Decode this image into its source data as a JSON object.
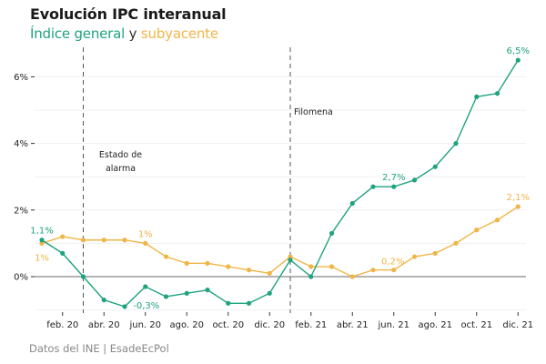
{
  "chart_data": {
    "type": "line",
    "title": "Evolución IPC interanual",
    "subtitle": {
      "part1": "Índice general",
      "connector": " y ",
      "part2": "subyacente"
    },
    "source": "Datos del INE | EsadeEcPol",
    "xlabel": "",
    "ylabel": "",
    "ylim": [
      -1.3,
      6.8
    ],
    "grid": true,
    "x": [
      "ene. 20",
      "feb. 20",
      "mar. 20",
      "abr. 20",
      "may. 20",
      "jun. 20",
      "jul. 20",
      "ago. 20",
      "sep. 20",
      "oct. 20",
      "nov. 20",
      "dic. 20",
      "ene. 21",
      "feb. 21",
      "mar. 21",
      "abr. 21",
      "may. 21",
      "jun. 21",
      "jul. 21",
      "ago. 21",
      "sep. 21",
      "oct. 21",
      "nov. 21",
      "dic. 21"
    ],
    "x_ticks": [
      {
        "index": 1,
        "label": "feb. 20"
      },
      {
        "index": 3,
        "label": "abr. 20"
      },
      {
        "index": 5,
        "label": "jun. 20"
      },
      {
        "index": 7,
        "label": "ago. 20"
      },
      {
        "index": 9,
        "label": "oct. 20"
      },
      {
        "index": 11,
        "label": "dic. 20"
      },
      {
        "index": 13,
        "label": "feb. 21"
      },
      {
        "index": 15,
        "label": "abr. 21"
      },
      {
        "index": 17,
        "label": "jun. 21"
      },
      {
        "index": 19,
        "label": "ago. 21"
      },
      {
        "index": 21,
        "label": "oct. 21"
      },
      {
        "index": 23,
        "label": "dic. 21"
      }
    ],
    "y_ticks": [
      {
        "value": 0,
        "label": "0%"
      },
      {
        "value": 2,
        "label": "2%"
      },
      {
        "value": 4,
        "label": "4%"
      },
      {
        "value": 6,
        "label": "6%"
      }
    ],
    "series": [
      {
        "name": "Índice general",
        "color": "#1fa37f",
        "values": [
          1.1,
          0.7,
          0.0,
          -0.7,
          -0.9,
          -0.3,
          -0.6,
          -0.5,
          -0.4,
          -0.8,
          -0.8,
          -0.5,
          0.5,
          0.0,
          1.3,
          2.2,
          2.7,
          2.7,
          2.9,
          3.3,
          4.0,
          5.4,
          5.5,
          6.5
        ],
        "labels": [
          {
            "index": 0,
            "text": "1,1%",
            "position": "above"
          },
          {
            "index": 5,
            "text": "-0,3%",
            "position": "below"
          },
          {
            "index": 17,
            "text": "2,7%",
            "position": "above"
          },
          {
            "index": 23,
            "text": "6,5%",
            "position": "above"
          }
        ]
      },
      {
        "name": "subyacente",
        "color": "#f0b547",
        "values": [
          1.0,
          1.2,
          1.1,
          1.1,
          1.1,
          1.0,
          0.6,
          0.4,
          0.4,
          0.3,
          0.2,
          0.1,
          0.6,
          0.3,
          0.3,
          0.0,
          0.2,
          0.2,
          0.6,
          0.7,
          1.0,
          1.4,
          1.7,
          2.1
        ],
        "labels": [
          {
            "index": 0,
            "text": "1%",
            "position": "below"
          },
          {
            "index": 5,
            "text": "1%",
            "position": "above"
          },
          {
            "index": 17,
            "text": "0,2%",
            "position": "above"
          },
          {
            "index": 23,
            "text": "2,1%",
            "position": "above"
          }
        ]
      }
    ],
    "annotations": [
      {
        "x_index": 2,
        "type": "vline",
        "lines": [
          "Estado de",
          "alarma"
        ]
      },
      {
        "x_index": 12,
        "type": "vline",
        "lines": [
          "Filomena"
        ]
      }
    ],
    "zero_line_color": "#888888"
  }
}
